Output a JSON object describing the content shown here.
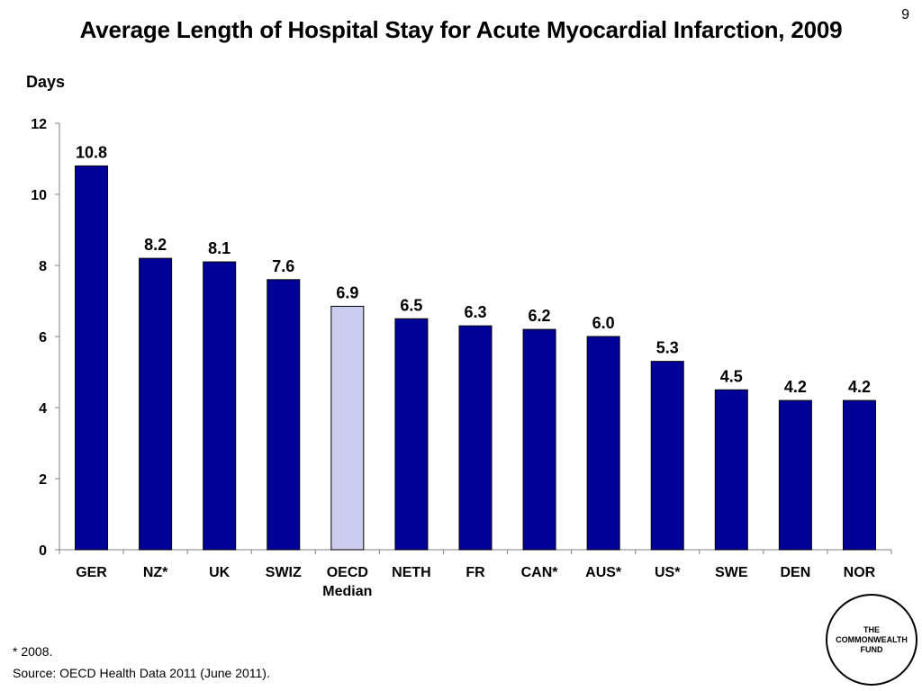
{
  "slide": {
    "number": "9"
  },
  "chart_data": {
    "type": "bar",
    "title": "Average Length of Hospital Stay for Acute Myocardial Infarction, 2009",
    "ylabel": "Days",
    "xlabel": "",
    "ylim": [
      0,
      12
    ],
    "yticks": [
      "0",
      "2",
      "4",
      "6",
      "8",
      "10",
      "12"
    ],
    "grid": false,
    "legend": "none",
    "categories": [
      [
        "GER"
      ],
      [
        "NZ*"
      ],
      [
        "UK"
      ],
      [
        "SWIZ"
      ],
      [
        "OECD",
        "Median"
      ],
      [
        "NETH"
      ],
      [
        "FR"
      ],
      [
        "CAN*"
      ],
      [
        "AUS*"
      ],
      [
        "US*"
      ],
      [
        "SWE"
      ],
      [
        "DEN"
      ],
      [
        "NOR"
      ]
    ],
    "values": [
      10.8,
      8.2,
      8.1,
      7.6,
      6.85,
      6.5,
      6.3,
      6.2,
      6.0,
      5.3,
      4.5,
      4.2,
      4.2
    ],
    "data_labels": [
      "10.8",
      "8.2",
      "8.1",
      "7.6",
      "6.9",
      "6.5",
      "6.3",
      "6.2",
      "6.0",
      "5.3",
      "4.5",
      "4.2",
      "4.2"
    ],
    "highlight_index": 4,
    "colors": {
      "bar": "#000099",
      "highlight": "#ccccee",
      "outline": "#000000"
    }
  },
  "footnotes": {
    "star": "* 2008.",
    "source": "Source: OECD Health Data 2011 (June 2011)."
  },
  "logo": {
    "line1": "THE",
    "line2": "COMMONWEALTH",
    "line3": "FUND"
  }
}
